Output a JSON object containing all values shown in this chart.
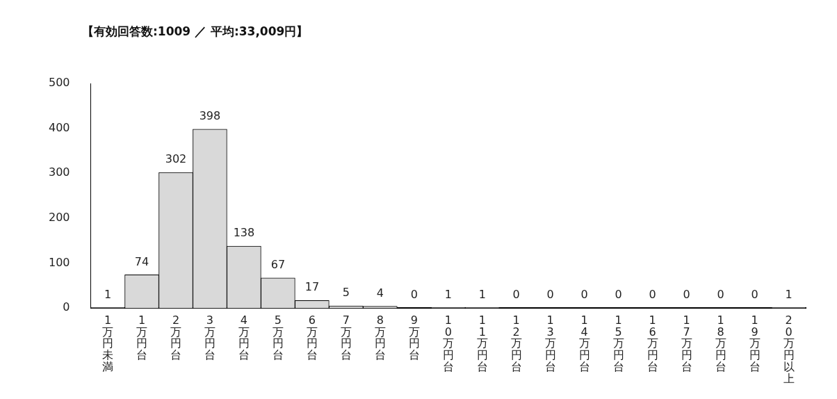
{
  "chart_data": {
    "type": "bar",
    "title": "【有効回答数:1009 ／ 平均:33,009円】",
    "categories": [
      "1万円未満",
      "1万円台",
      "2万円台",
      "3万円台",
      "4万円台",
      "5万円台",
      "6万円台",
      "7万円台",
      "8万円台",
      "9万円台",
      "10万円台",
      "11万円台",
      "12万円台",
      "13万円台",
      "14万円台",
      "15万円台",
      "16万円台",
      "17万円台",
      "18万円台",
      "19万円台",
      "20万円以上"
    ],
    "values": [
      1,
      74,
      302,
      398,
      138,
      67,
      17,
      5,
      4,
      0,
      1,
      1,
      0,
      0,
      0,
      0,
      0,
      0,
      0,
      0,
      1
    ],
    "color": "#d9d9d9",
    "ylim": [
      0,
      500
    ],
    "yticks": [
      0,
      100,
      200,
      300,
      400,
      500
    ],
    "grid": false,
    "legend": false,
    "data_labels": true
  }
}
